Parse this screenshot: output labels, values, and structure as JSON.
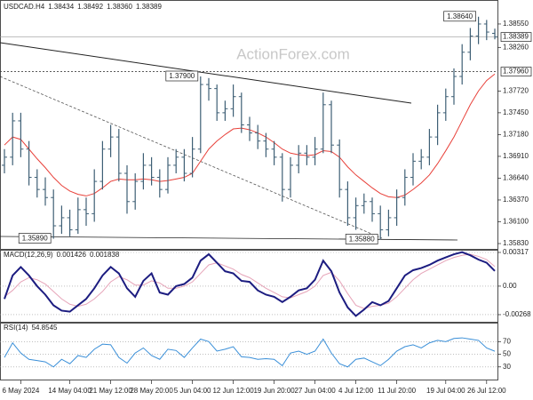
{
  "chart_data": [
    {
      "type": "ohlc",
      "symbol": "USDCAD.H4",
      "header_values": [
        "1.38434",
        "1.38492",
        "1.38360",
        "1.38389"
      ],
      "watermark": "ActionForex.com",
      "color": "#3e5f75",
      "categories": [
        null,
        null,
        "6 May 2024",
        null,
        null,
        null,
        null,
        null,
        "14 May 04:00",
        null,
        null,
        null,
        null,
        "21 May 12:00",
        null,
        null,
        null,
        null,
        "28 May 20:00",
        null,
        null,
        null,
        null,
        "5 Jun 04:00",
        null,
        null,
        null,
        null,
        "12 Jun 12:00",
        null,
        null,
        null,
        null,
        "19 Jun 20:00",
        null,
        null,
        null,
        null,
        "27 Jun 04:00",
        null,
        null,
        null,
        null,
        "4 Jul 12:00",
        null,
        null,
        null,
        null,
        "11 Jul 20:00",
        null,
        null,
        null,
        null,
        null,
        "19 Jul 04:00",
        null,
        null,
        null,
        null,
        "26 Jul 12:00",
        null
      ],
      "open": [
        1.368,
        1.369,
        1.3735,
        1.37,
        1.3665,
        1.365,
        1.364,
        1.3605,
        1.3615,
        1.36,
        1.3625,
        1.362,
        1.366,
        1.37,
        1.3715,
        1.367,
        1.3635,
        1.366,
        1.368,
        1.3665,
        1.365,
        1.368,
        1.369,
        1.367,
        1.37,
        1.378,
        1.3775,
        1.3745,
        1.375,
        1.3765,
        1.373,
        1.372,
        1.371,
        1.37,
        1.369,
        1.365,
        1.368,
        1.3695,
        1.369,
        1.37,
        1.3755,
        1.3705,
        1.365,
        1.3615,
        1.363,
        1.3635,
        1.362,
        1.36,
        1.3615,
        1.364,
        1.3665,
        1.3685,
        1.369,
        1.3715,
        1.3745,
        1.3765,
        1.379,
        1.382,
        1.384,
        1.3855,
        1.38434
      ],
      "high": [
        1.37,
        1.3745,
        1.3745,
        1.371,
        1.3675,
        1.3665,
        1.365,
        1.363,
        1.3625,
        1.364,
        1.364,
        1.3675,
        1.371,
        1.373,
        1.3725,
        1.368,
        1.367,
        1.3695,
        1.369,
        1.3675,
        1.369,
        1.37,
        1.37,
        1.3715,
        1.379,
        1.3788,
        1.378,
        1.376,
        1.378,
        1.377,
        1.374,
        1.373,
        1.372,
        1.371,
        1.3695,
        1.369,
        1.3705,
        1.3705,
        1.3715,
        1.377,
        1.376,
        1.3712,
        1.366,
        1.364,
        1.3645,
        1.364,
        1.363,
        1.3625,
        1.365,
        1.3675,
        1.3695,
        1.37,
        1.3725,
        1.3755,
        1.3775,
        1.38,
        1.383,
        1.385,
        1.3864,
        1.386,
        1.38492
      ],
      "low": [
        1.367,
        1.368,
        1.369,
        1.3655,
        1.364,
        1.363,
        1.3589,
        1.3595,
        1.3592,
        1.3595,
        1.3605,
        1.361,
        1.365,
        1.369,
        1.366,
        1.362,
        1.3625,
        1.365,
        1.3655,
        1.364,
        1.3645,
        1.367,
        1.366,
        1.3665,
        1.3695,
        1.376,
        1.3735,
        1.3735,
        1.374,
        1.372,
        1.371,
        1.37,
        1.369,
        1.368,
        1.3635,
        1.364,
        1.367,
        1.368,
        1.368,
        1.3695,
        1.3695,
        1.364,
        1.3605,
        1.36,
        1.362,
        1.361,
        1.3588,
        1.3592,
        1.3605,
        1.363,
        1.3655,
        1.3675,
        1.368,
        1.3705,
        1.3735,
        1.3755,
        1.378,
        1.381,
        1.383,
        1.3835,
        1.3836
      ],
      "close": [
        1.369,
        1.3735,
        1.37,
        1.3665,
        1.365,
        1.364,
        1.3605,
        1.3615,
        1.36,
        1.3625,
        1.362,
        1.366,
        1.37,
        1.3715,
        1.367,
        1.3635,
        1.366,
        1.368,
        1.3665,
        1.365,
        1.368,
        1.369,
        1.367,
        1.37,
        1.378,
        1.3775,
        1.3745,
        1.375,
        1.3765,
        1.373,
        1.372,
        1.371,
        1.37,
        1.369,
        1.365,
        1.368,
        1.3695,
        1.369,
        1.37,
        1.3755,
        1.3705,
        1.365,
        1.3615,
        1.363,
        1.3635,
        1.362,
        1.36,
        1.3615,
        1.364,
        1.3665,
        1.3685,
        1.369,
        1.3715,
        1.3745,
        1.3765,
        1.379,
        1.382,
        1.384,
        1.3855,
        1.3845,
        1.38389
      ],
      "series": [
        {
          "color": "#e8413a",
          "values": [
            1.3705,
            1.3715,
            1.3712,
            1.37,
            1.3688,
            1.3677,
            1.3665,
            1.3655,
            1.3648,
            1.3644,
            1.3642,
            1.3645,
            1.3652,
            1.366,
            1.3663,
            1.3662,
            1.3662,
            1.3663,
            1.3662,
            1.366,
            1.3661,
            1.3663,
            1.3665,
            1.367,
            1.3685,
            1.37,
            1.371,
            1.3718,
            1.3725,
            1.3726,
            1.3724,
            1.372,
            1.3715,
            1.3708,
            1.37,
            1.3695,
            1.3693,
            1.3692,
            1.3693,
            1.3698,
            1.3697,
            1.369,
            1.3678,
            1.3668,
            1.366,
            1.3652,
            1.3645,
            1.3641,
            1.364,
            1.3643,
            1.365,
            1.3658,
            1.3668,
            1.3682,
            1.3698,
            1.3715,
            1.3735,
            1.3755,
            1.3772,
            1.3785,
            1.3793
          ]
        }
      ],
      "annotations": [
        {
          "index": 24,
          "value": 1.379,
          "label": "1.37900"
        },
        {
          "index": 6,
          "value": 1.3589,
          "label": "1.35890"
        },
        {
          "index": 46,
          "value": 1.3588,
          "label": "1.35880"
        },
        {
          "index": 58,
          "value": 1.3864,
          "label": "1.38640"
        }
      ],
      "levels": [
        {
          "value": 1.3796,
          "label": "1.37960"
        }
      ],
      "ylim": [
        1.35764,
        1.38847
      ],
      "yticks": [
        {
          "value": 1.3855,
          "label": "1.38550"
        },
        {
          "value": 1.3826,
          "label": "1.38260"
        },
        {
          "value": 1.3772,
          "label": "1.37720"
        },
        {
          "value": 1.3745,
          "label": "1.37450"
        },
        {
          "value": 1.3718,
          "label": "1.37180"
        },
        {
          "value": 1.3691,
          "label": "1.36910"
        },
        {
          "value": 1.3664,
          "label": "1.36640"
        },
        {
          "value": 1.3637,
          "label": "1.36370"
        },
        {
          "value": 1.361,
          "label": "1.36100"
        },
        {
          "value": 1.3583,
          "label": "1.35830"
        }
      ]
    },
    {
      "type": "macd",
      "title": "MACD(12,26,9)",
      "grid": true,
      "series": [
        {
          "color": "#1c1c80",
          "values": [
            -0.0012,
            0.001,
            0.0018,
            0.001,
            0.0,
            -0.0008,
            -0.0018,
            -0.0023,
            -0.0024,
            -0.0018,
            -0.0012,
            -0.0002,
            0.001,
            0.0018,
            0.0012,
            -0.0002,
            -0.001,
            0.0005,
            0.0012,
            -0.0006,
            -0.0008,
            0.0,
            0.0002,
            0.0008,
            0.0024,
            0.003,
            0.0022,
            0.0014,
            0.0012,
            0.0005,
            0.0004,
            -0.0004,
            -0.0008,
            -0.001,
            -0.0015,
            -0.001,
            -0.0004,
            -0.0002,
            0.0006,
            0.0024,
            0.0014,
            -0.0006,
            -0.002,
            -0.0028,
            -0.0022,
            -0.0015,
            -0.0018,
            -0.0014,
            -0.0002,
            0.001,
            0.0015,
            0.0017,
            0.002,
            0.0024,
            0.0027,
            0.003,
            0.0032,
            0.0029,
            0.0025,
            0.0022,
            0.001426
          ]
        },
        {
          "color": "#e6a4b8",
          "values": [
            -0.001,
            -0.0004,
            0.0004,
            0.0008,
            0.0006,
            0.0002,
            -0.0005,
            -0.0012,
            -0.0017,
            -0.0019,
            -0.0017,
            -0.0012,
            -0.0005,
            0.0004,
            0.0009,
            0.0006,
            0.0001,
            0.0001,
            0.0005,
            0.0003,
            -0.0002,
            -0.0002,
            0.0,
            0.0004,
            0.0012,
            0.002,
            0.0022,
            0.0019,
            0.0016,
            0.0011,
            0.0008,
            0.0003,
            -0.0002,
            -0.0006,
            -0.001,
            -0.0011,
            -0.0008,
            -0.0005,
            0.0,
            0.001,
            0.0013,
            0.0005,
            -0.0007,
            -0.0018,
            -0.0021,
            -0.0019,
            -0.0018,
            -0.0016,
            -0.001,
            -0.0002,
            0.0006,
            0.0012,
            0.0016,
            0.002,
            0.0024,
            0.0027,
            0.0029,
            0.003,
            0.0028,
            0.0025,
            0.001838
          ]
        }
      ],
      "ylim": [
        -0.00335,
        0.00342
      ],
      "yticks": [
        0.00317,
        {
          "value": 0,
          "label": "0.00"
        },
        -0.00268
      ]
    },
    {
      "type": "rsi",
      "title": "RSI(14)",
      "grid": true,
      "series": [
        {
          "color": "#3a8fd8",
          "values": [
            45,
            68,
            52,
            42,
            40,
            38,
            30,
            42,
            35,
            48,
            45,
            58,
            66,
            65,
            45,
            36,
            52,
            60,
            48,
            42,
            58,
            56,
            45,
            60,
            74,
            70,
            55,
            58,
            62,
            46,
            45,
            42,
            43,
            42,
            32,
            52,
            55,
            50,
            55,
            74,
            52,
            35,
            30,
            42,
            44,
            38,
            32,
            42,
            55,
            62,
            65,
            60,
            68,
            72,
            70,
            75,
            76,
            74,
            72,
            60,
            54.8545
          ]
        }
      ],
      "ylim": [
        10,
        100
      ],
      "yticks": [
        70,
        50,
        30
      ]
    }
  ]
}
